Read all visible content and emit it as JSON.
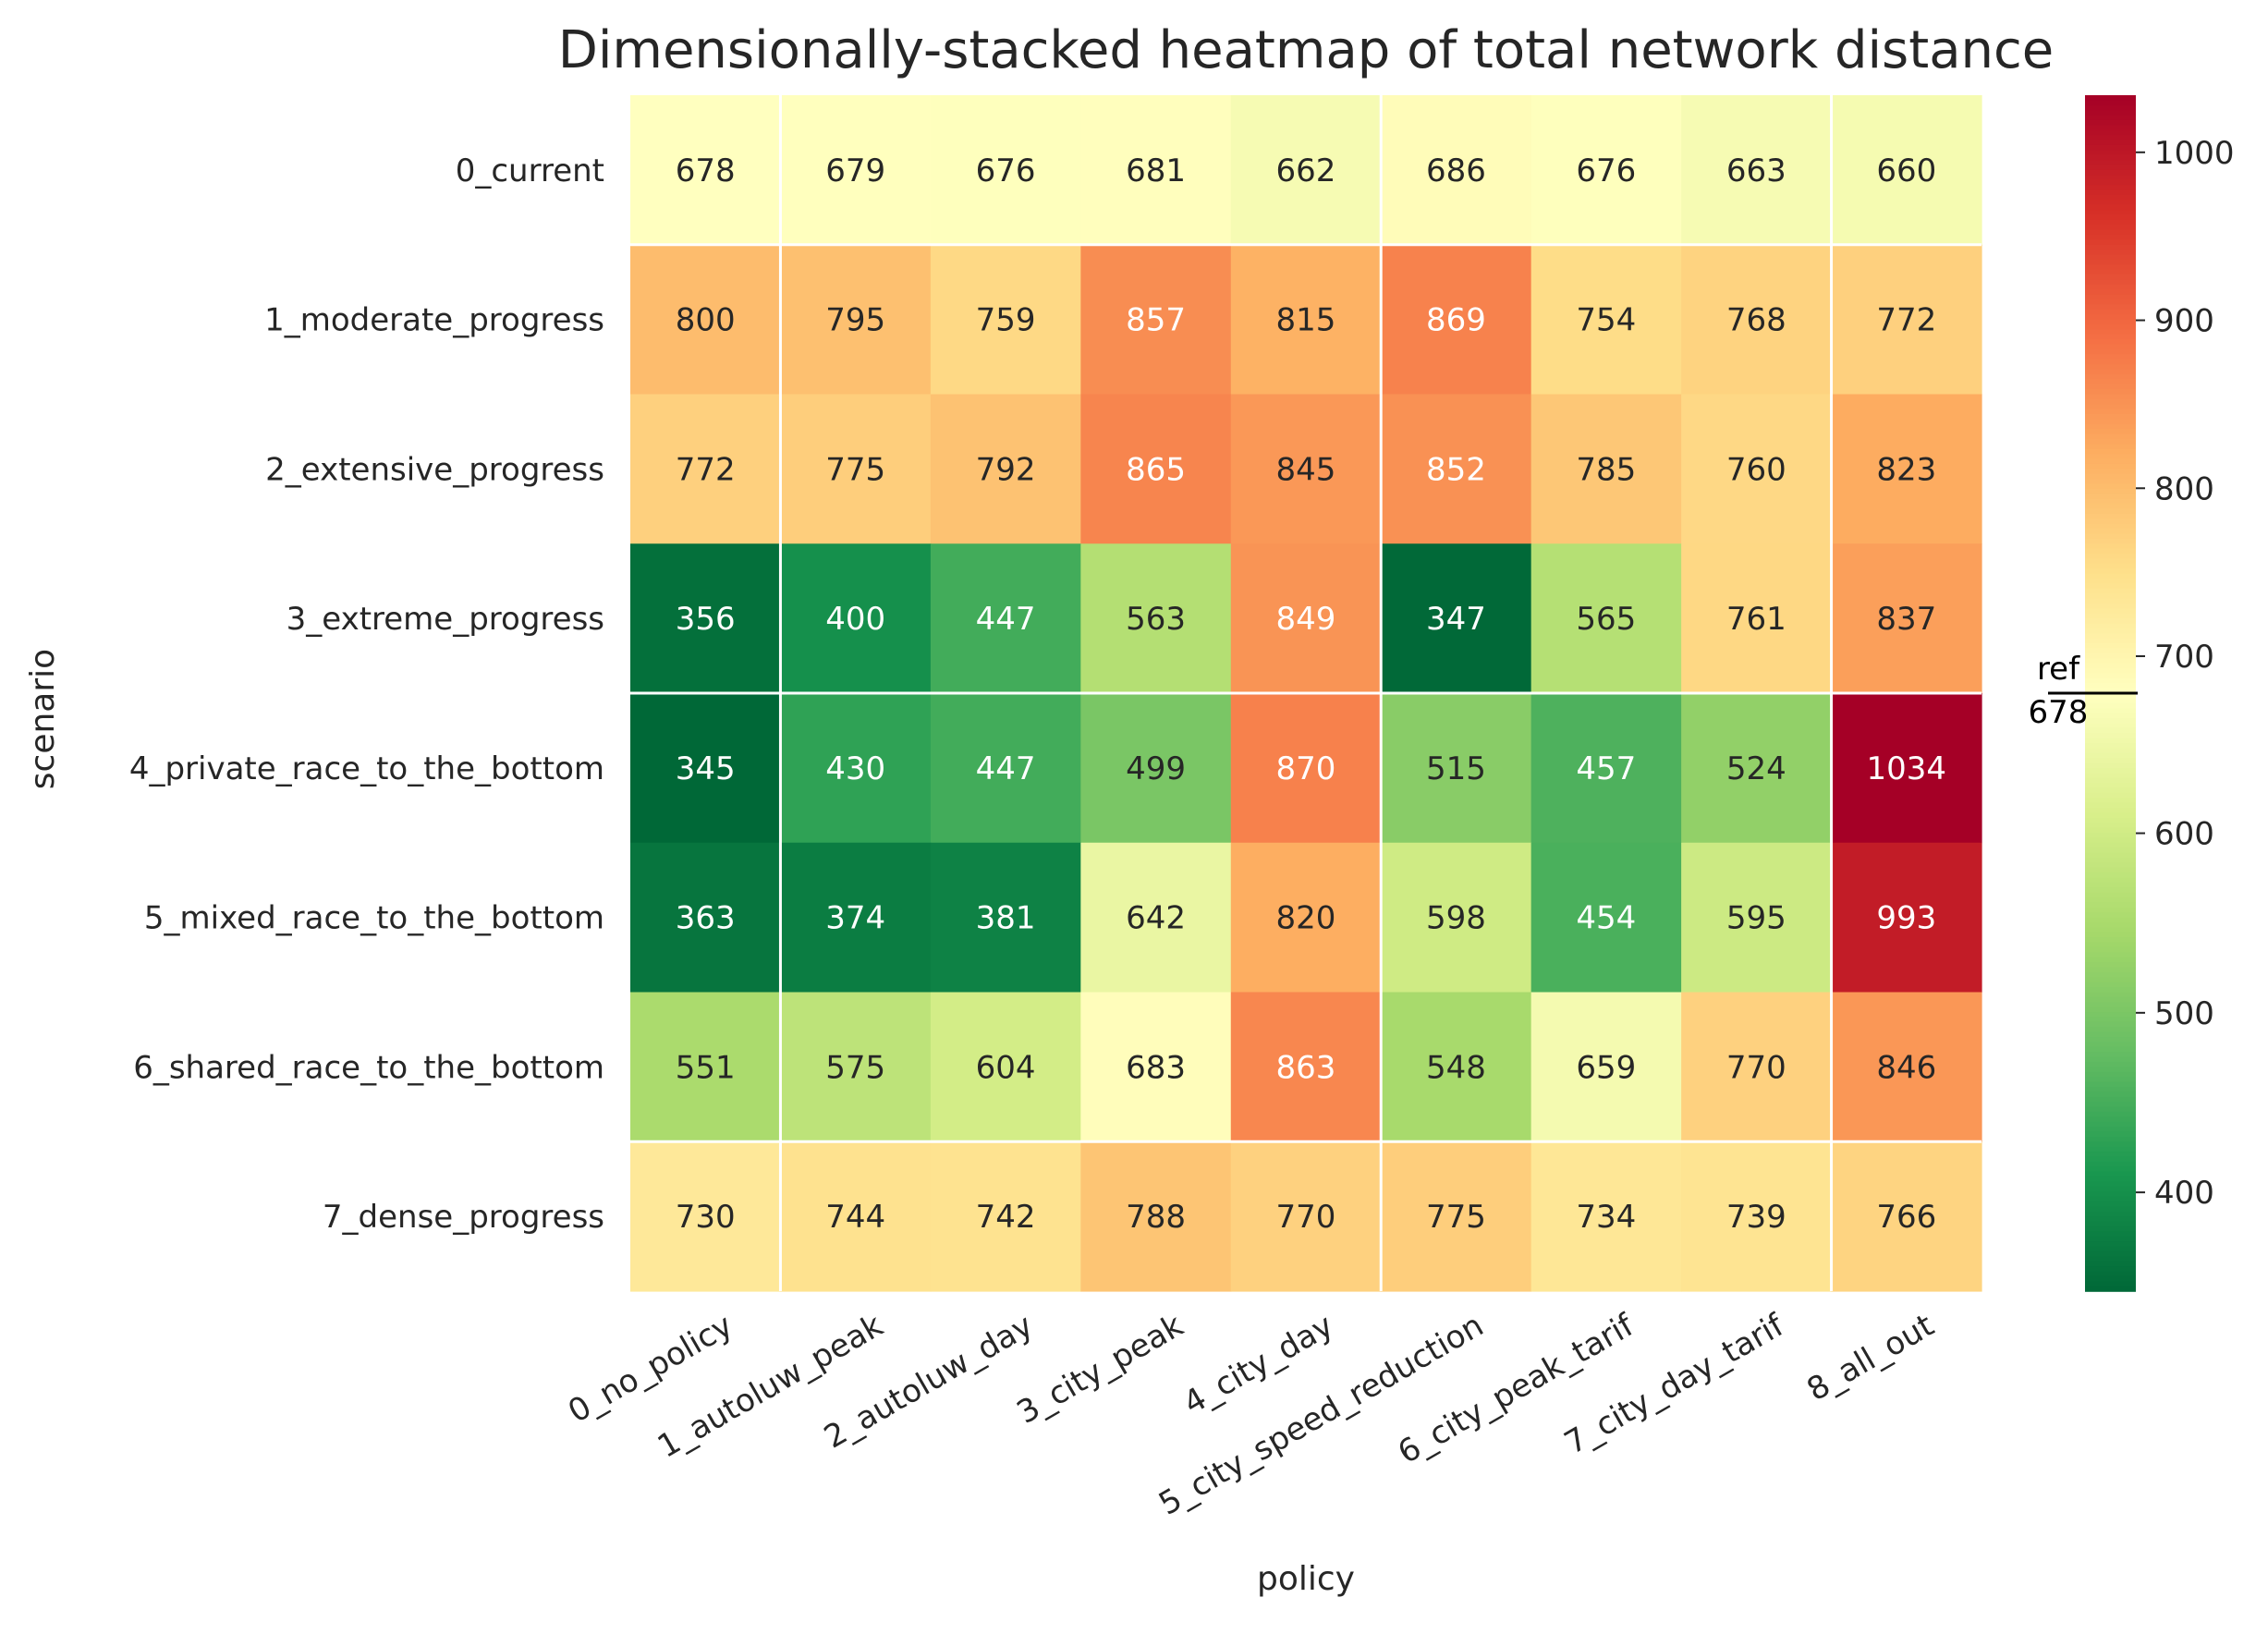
{
  "chart_data": {
    "type": "heatmap",
    "title": "Dimensionally-stacked heatmap of total network distance",
    "xlabel": "policy",
    "ylabel": "scenario",
    "x_categories": [
      "0_no_policy",
      "1_autoluw_peak",
      "2_autoluw_day",
      "3_city_peak",
      "4_city_day",
      "5_city_speed_reduction",
      "6_city_peak_tarif",
      "7_city_day_tarif",
      "8_all_out"
    ],
    "y_categories": [
      "0_current",
      "1_moderate_progress",
      "2_extensive_progress",
      "3_extreme_progress",
      "4_private_race_to_the_bottom",
      "5_mixed_race_to_the_bottom",
      "6_shared_race_to_the_bottom",
      "7_dense_progress"
    ],
    "values": [
      [
        678,
        679,
        676,
        681,
        662,
        686,
        676,
        663,
        660
      ],
      [
        800,
        795,
        759,
        857,
        815,
        869,
        754,
        768,
        772
      ],
      [
        772,
        775,
        792,
        865,
        845,
        852,
        785,
        760,
        823
      ],
      [
        356,
        400,
        447,
        563,
        849,
        347,
        565,
        761,
        837
      ],
      [
        345,
        430,
        447,
        499,
        870,
        515,
        457,
        524,
        1034
      ],
      [
        363,
        374,
        381,
        642,
        820,
        598,
        454,
        595,
        993
      ],
      [
        551,
        575,
        604,
        683,
        863,
        548,
        659,
        770,
        846
      ],
      [
        730,
        744,
        742,
        788,
        770,
        775,
        734,
        739,
        766
      ]
    ],
    "colorscale": "RdYlGn_r",
    "vmin": 345,
    "vmax": 1034,
    "vcenter": 678,
    "colorbar_ticks": [
      "400",
      "500",
      "600",
      "700",
      "800",
      "900",
      "1000"
    ],
    "colorbar_tick_values": [
      400,
      500,
      600,
      700,
      800,
      900,
      1000
    ],
    "reference": {
      "label": "ref",
      "value_label": "678",
      "value": 678
    },
    "separators": {
      "vertical_after_columns": [
        0,
        4,
        7
      ],
      "horizontal_after_rows": [
        0,
        3,
        6
      ]
    },
    "grid": false
  }
}
